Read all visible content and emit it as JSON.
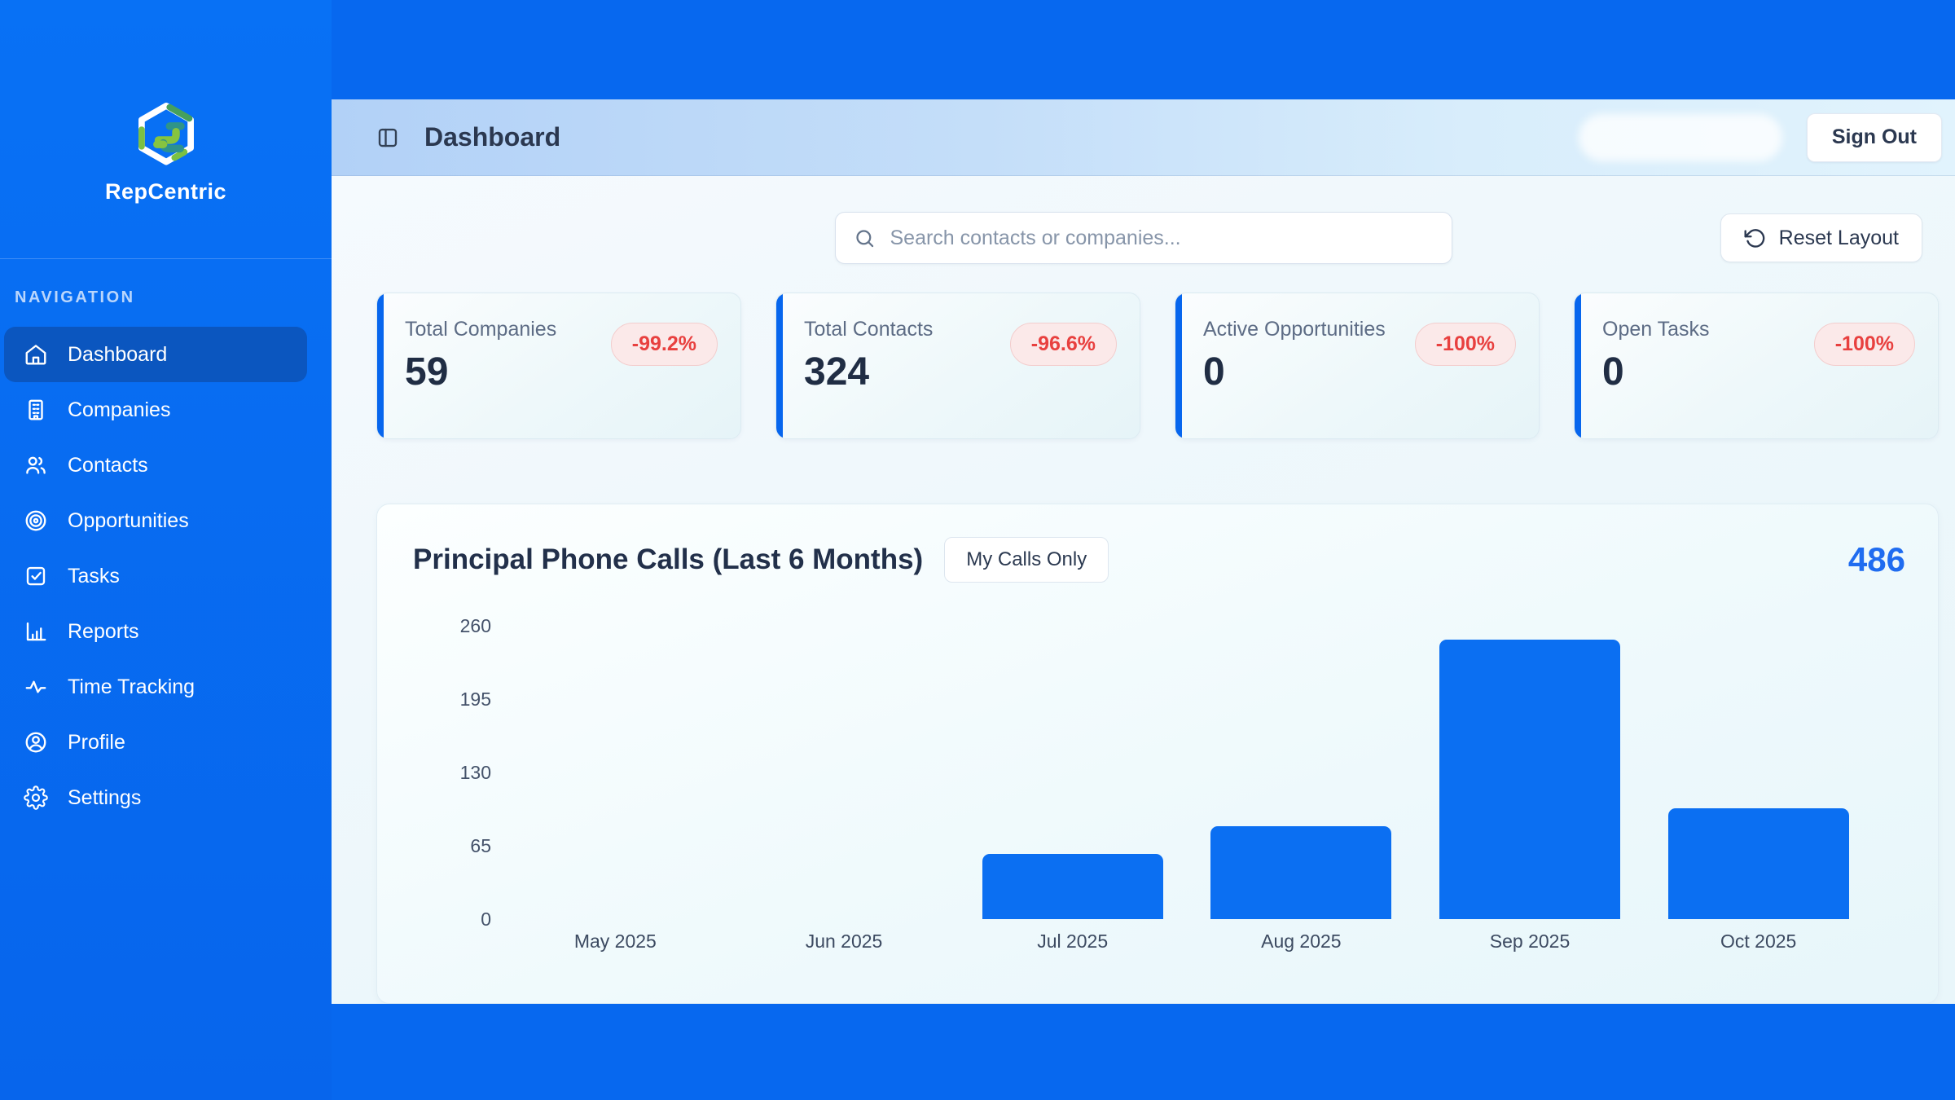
{
  "brand": {
    "name": "RepCentric",
    "logo_icon": "hexagon-interlock-logo"
  },
  "sidebar": {
    "section_label": "NAVIGATION",
    "items": [
      {
        "label": "Dashboard",
        "icon": "home-icon",
        "active": true
      },
      {
        "label": "Companies",
        "icon": "building-icon",
        "active": false
      },
      {
        "label": "Contacts",
        "icon": "users-icon",
        "active": false
      },
      {
        "label": "Opportunities",
        "icon": "target-icon",
        "active": false
      },
      {
        "label": "Tasks",
        "icon": "task-check-icon",
        "active": false
      },
      {
        "label": "Reports",
        "icon": "bar-chart-icon",
        "active": false
      },
      {
        "label": "Time Tracking",
        "icon": "activity-icon",
        "active": false
      },
      {
        "label": "Profile",
        "icon": "user-circle-icon",
        "active": false
      },
      {
        "label": "Settings",
        "icon": "gear-icon",
        "active": false
      }
    ]
  },
  "header": {
    "title": "Dashboard",
    "panel_toggle_icon": "panel-toggle-icon",
    "sign_out_label": "Sign Out"
  },
  "toolbar": {
    "search_icon": "search-icon",
    "search_placeholder": "Search contacts or companies...",
    "search_value": "",
    "reset_icon": "rotate-ccw-icon",
    "reset_layout_label": "Reset Layout"
  },
  "stats": [
    {
      "label": "Total Companies",
      "value": "59",
      "change": "-99.2%"
    },
    {
      "label": "Total Contacts",
      "value": "324",
      "change": "-96.6%"
    },
    {
      "label": "Active Opportunities",
      "value": "0",
      "change": "-100%"
    },
    {
      "label": "Open Tasks",
      "value": "0",
      "change": "-100%"
    }
  ],
  "chart": {
    "title": "Principal Phone Calls (Last 6 Months)",
    "filter_label": "My Calls Only",
    "total": "486"
  },
  "chart_data": {
    "type": "bar",
    "title": "Principal Phone Calls (Last 6 Months)",
    "categories": [
      "May 2025",
      "Jun 2025",
      "Jul 2025",
      "Aug 2025",
      "Sep 2025",
      "Oct 2025"
    ],
    "values": [
      0,
      0,
      58,
      82,
      248,
      98
    ],
    "total": 486,
    "yticks": [
      0,
      65,
      130,
      195,
      260
    ],
    "ylim": [
      0,
      260
    ],
    "xlabel": "",
    "ylabel": "",
    "grid": false,
    "legend": false,
    "bar_color": "#0b6ff2"
  },
  "colors": {
    "sidebar_blue": "#0768ef",
    "active_nav_blue": "#0b56bf",
    "bar_blue": "#0b6ff2",
    "accent_blue": "#1f6cf0",
    "negative_red": "#e8403f",
    "badge_bg": "#fbe9e9",
    "header_fade_start": "#b2d1f7",
    "header_fade_end": "#e1f3fd"
  }
}
